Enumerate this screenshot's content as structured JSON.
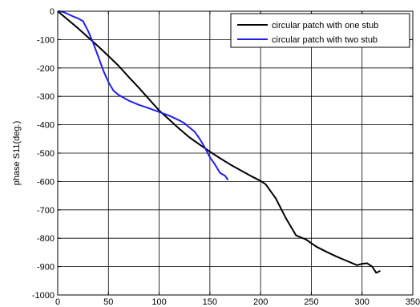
{
  "chart_data": {
    "type": "line",
    "title": "",
    "xlabel": "",
    "ylabel": "phase S11(deg.)",
    "xlim": [
      0,
      350
    ],
    "ylim": [
      -1000,
      0
    ],
    "xticks": [
      0,
      50,
      100,
      150,
      200,
      250,
      300,
      350
    ],
    "yticks": [
      0,
      -100,
      -200,
      -300,
      -400,
      -500,
      -600,
      -700,
      -800,
      -900,
      -1000
    ],
    "grid": true,
    "legend_position": "top-right",
    "series": [
      {
        "name": "circular patch with one stub",
        "color": "#000000",
        "x": [
          0,
          10,
          20,
          30,
          40,
          50,
          60,
          70,
          80,
          90,
          100,
          110,
          120,
          130,
          140,
          150,
          160,
          170,
          180,
          190,
          200,
          205,
          215,
          225,
          235,
          245,
          255,
          265,
          275,
          285,
          295,
          300,
          305,
          310,
          314,
          318
        ],
        "y": [
          0,
          -30,
          -60,
          -92,
          -124,
          -158,
          -192,
          -232,
          -270,
          -310,
          -350,
          -382,
          -415,
          -445,
          -470,
          -495,
          -518,
          -540,
          -560,
          -580,
          -598,
          -610,
          -660,
          -730,
          -790,
          -805,
          -830,
          -848,
          -865,
          -880,
          -895,
          -890,
          -888,
          -900,
          -922,
          -915
        ]
      },
      {
        "name": "circular patch with two stub",
        "color": "#1f1fe6",
        "x": [
          0,
          5,
          10,
          15,
          20,
          25,
          30,
          35,
          40,
          45,
          50,
          55,
          60,
          70,
          80,
          90,
          100,
          110,
          120,
          125,
          130,
          135,
          140,
          145,
          150,
          155,
          160,
          165,
          168
        ],
        "y": [
          0,
          -2,
          -10,
          -18,
          -25,
          -35,
          -70,
          -112,
          -160,
          -210,
          -250,
          -280,
          -295,
          -315,
          -330,
          -342,
          -355,
          -368,
          -385,
          -395,
          -410,
          -425,
          -450,
          -480,
          -515,
          -540,
          -570,
          -580,
          -595
        ]
      }
    ]
  }
}
